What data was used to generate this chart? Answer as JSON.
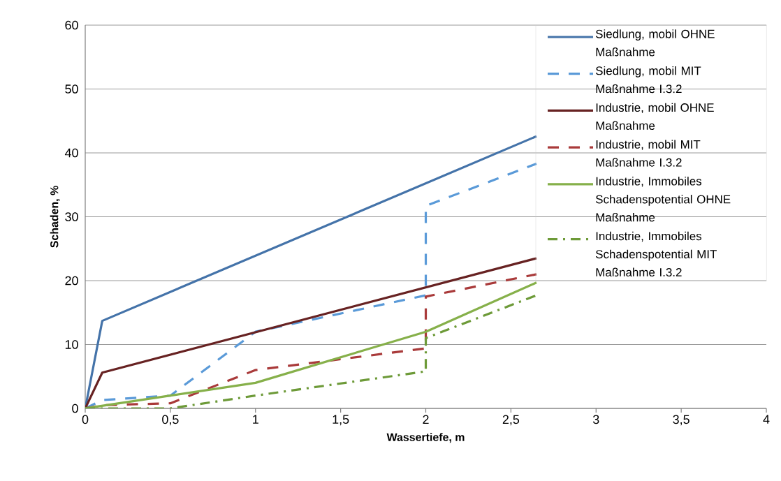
{
  "chart_data": {
    "type": "line",
    "xlabel": "Wassertiefe, m",
    "ylabel": "Schaden, %",
    "xlim": [
      0,
      4
    ],
    "ylim": [
      0,
      60
    ],
    "xticks": [
      0,
      {
        "value": 0.5,
        "label": "0,5"
      },
      1,
      {
        "value": 1.5,
        "label": "1,5"
      },
      2,
      {
        "value": 2.5,
        "label": "2,5"
      },
      3,
      {
        "value": 3.5,
        "label": "3,5"
      },
      4
    ],
    "yticks": [
      0,
      10,
      20,
      30,
      40,
      50,
      60
    ],
    "grid": "y",
    "legend": "right",
    "series": [
      {
        "name": "Siedlung, mobil OHNE Maßnahme",
        "color": "#4473a9",
        "line_style": "solid",
        "x": [
          0,
          0.1,
          2.65
        ],
        "values": [
          0,
          13.7,
          42.6
        ]
      },
      {
        "name": "Siedlung, mobil MIT Maßnahme I.3.2",
        "color": "#5a9ad8",
        "line_style": "dashed",
        "x": [
          0,
          0.1,
          0.5,
          1,
          2,
          2,
          2.65
        ],
        "values": [
          0,
          1.3,
          2,
          12,
          17.7,
          31.7,
          38.3
        ]
      },
      {
        "name": "Industrie, mobil OHNE Maßnahme",
        "color": "#672222",
        "line_style": "solid",
        "x": [
          0,
          0.1,
          2.65
        ],
        "values": [
          0,
          5.6,
          23.5
        ]
      },
      {
        "name": "Industrie, mobil MIT Maßnahme I.3.2",
        "color": "#a93a3a",
        "line_style": "dashed",
        "x": [
          0,
          0.1,
          0.5,
          1,
          2,
          2,
          2.65
        ],
        "values": [
          0,
          0.5,
          0.8,
          6,
          9.4,
          17.5,
          21
        ]
      },
      {
        "name": "Industrie, Immobiles Schadenspotential OHNE Maßnahme",
        "color": "#86b04a",
        "line_style": "solid",
        "x": [
          0,
          0.5,
          1,
          2,
          2.65
        ],
        "values": [
          0,
          2,
          4,
          12,
          19.7
        ]
      },
      {
        "name": "Industrie, Immobiles Schadenspotential MIT Maßnahme I.3.2",
        "color": "#6d9a38",
        "line_style": "dashdot",
        "x": [
          0,
          0.5,
          1,
          2,
          2,
          2.65
        ],
        "values": [
          0,
          0,
          2,
          5.8,
          11,
          17.7
        ]
      }
    ]
  }
}
